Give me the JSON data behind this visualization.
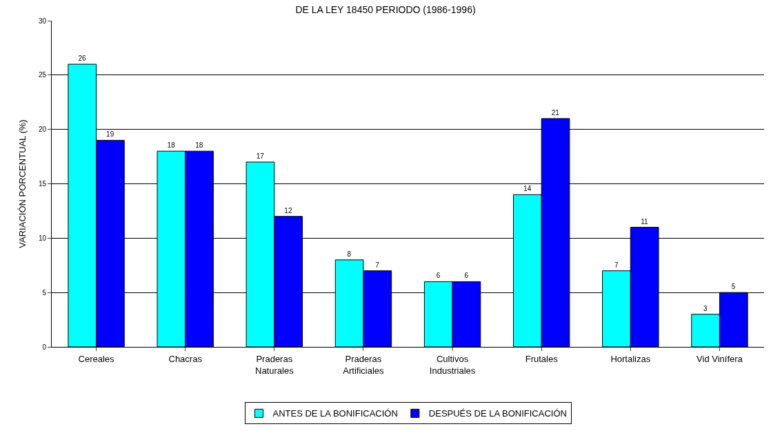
{
  "chart_data": {
    "type": "bar",
    "title": "DE LA LEY 18450 PERIODO (1986-1996)",
    "ylabel": "VARIACIÓN PORCENTUAL (%)",
    "categories": [
      "Cereales",
      "Chacras",
      "Praderas\nNaturales",
      "Praderas\nArtificiales",
      "Cultivos\nIndustriales",
      "Frutales",
      "Hortalizas",
      "Vid Vinífera"
    ],
    "series": [
      {
        "name": "ANTES DE LA BONIFICACIÓN",
        "color": "#00ffff",
        "values": [
          26,
          18,
          17,
          8,
          6,
          14,
          7,
          3
        ]
      },
      {
        "name": "DESPUÉS DE LA BONIFICACIÓN",
        "color": "#0000ff",
        "values": [
          19,
          18,
          12,
          7,
          6,
          21,
          11,
          5
        ]
      }
    ],
    "ylim": [
      0,
      30
    ],
    "yticks": [
      0,
      5,
      10,
      15,
      20,
      25,
      30
    ],
    "grid": "y",
    "legend": "bottom",
    "data_labels": true
  }
}
